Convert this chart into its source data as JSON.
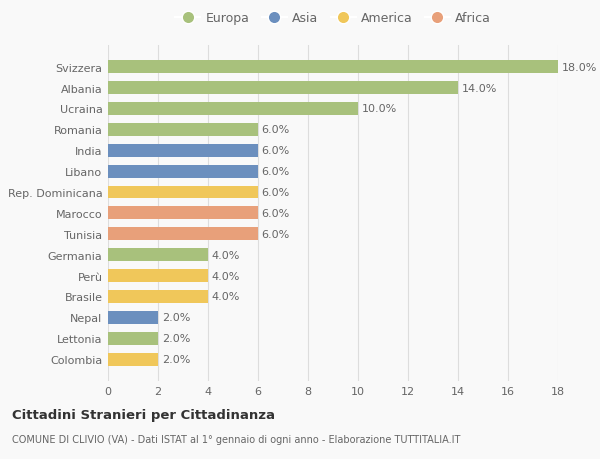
{
  "countries": [
    "Svizzera",
    "Albania",
    "Ucraina",
    "Romania",
    "India",
    "Libano",
    "Rep. Dominicana",
    "Marocco",
    "Tunisia",
    "Germania",
    "Perù",
    "Brasile",
    "Nepal",
    "Lettonia",
    "Colombia"
  ],
  "values": [
    18.0,
    14.0,
    10.0,
    6.0,
    6.0,
    6.0,
    6.0,
    6.0,
    6.0,
    4.0,
    4.0,
    4.0,
    2.0,
    2.0,
    2.0
  ],
  "categories": [
    "Europa",
    "Asia",
    "America",
    "Africa"
  ],
  "continent": [
    "Europa",
    "Europa",
    "Europa",
    "Europa",
    "Asia",
    "Asia",
    "America",
    "Africa",
    "Africa",
    "Europa",
    "America",
    "America",
    "Asia",
    "Europa",
    "America"
  ],
  "colors": {
    "Europa": "#a8c17c",
    "Asia": "#6b8fbe",
    "America": "#f0c75a",
    "Africa": "#e8a07a"
  },
  "title": "Cittadini Stranieri per Cittadinanza",
  "subtitle": "COMUNE DI CLIVIO (VA) - Dati ISTAT al 1° gennaio di ogni anno - Elaborazione TUTTITALIA.IT",
  "xlim": [
    0,
    18
  ],
  "xticks": [
    0,
    2,
    4,
    6,
    8,
    10,
    12,
    14,
    16,
    18
  ],
  "background_color": "#f9f9f9",
  "grid_color": "#dddddd",
  "bar_height": 0.62,
  "label_fontsize": 8,
  "ytick_fontsize": 8,
  "xtick_fontsize": 8
}
